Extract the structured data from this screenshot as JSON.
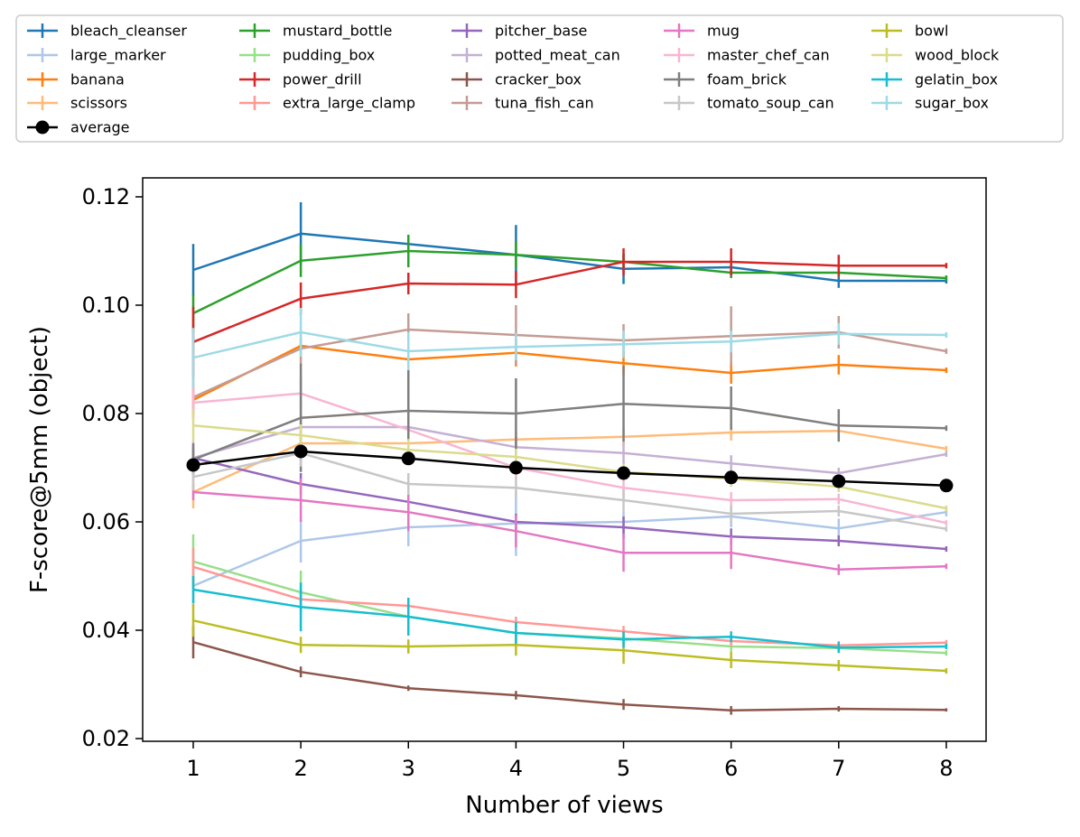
{
  "chart_data": {
    "type": "line",
    "title": "",
    "xlabel": "Number of views",
    "ylabel": "F-score@5mm (object)",
    "x": [
      1,
      2,
      3,
      4,
      5,
      6,
      7,
      8
    ],
    "xlim": [
      0.53,
      8.37
    ],
    "ylim": [
      0.0195,
      0.1235
    ],
    "xticks": [
      "1",
      "2",
      "3",
      "4",
      "5",
      "6",
      "7",
      "8"
    ],
    "yticks": [
      "0.02",
      "0.04",
      "0.06",
      "0.08",
      "0.10",
      "0.12"
    ],
    "legend_position": "top, above plot",
    "series": [
      {
        "name": "bleach_cleanser",
        "color": "#1f77b4",
        "values": [
          0.1065,
          0.1132,
          0.1113,
          0.1093,
          0.1067,
          0.107,
          0.1045,
          0.1045
        ],
        "err": [
          0.0048,
          0.0058,
          0.0015,
          0.0055,
          0.0028,
          0.0015,
          0.0013,
          0.0005
        ]
      },
      {
        "name": "large_marker",
        "color": "#aec7e8",
        "values": [
          0.0482,
          0.0565,
          0.059,
          0.0597,
          0.06,
          0.061,
          0.0588,
          0.0618
        ],
        "err": [
          0.004,
          0.004,
          0.0035,
          0.006,
          0.002,
          0.002,
          0.0018,
          0.0008
        ]
      },
      {
        "name": "banana",
        "color": "#ff7f0e",
        "values": [
          0.0825,
          0.0925,
          0.09,
          0.0912,
          0.0893,
          0.0875,
          0.089,
          0.088
        ],
        "err": [
          0.0025,
          0.0015,
          0.0013,
          0.0025,
          0.0022,
          0.002,
          0.0018,
          0.0005
        ]
      },
      {
        "name": "scissors",
        "color": "#ffbb78",
        "values": [
          0.0655,
          0.0745,
          0.0745,
          0.0752,
          0.0757,
          0.0765,
          0.0768,
          0.0735
        ],
        "err": [
          0.003,
          0.002,
          0.002,
          0.0015,
          0.0015,
          0.0015,
          0.0012,
          0.0005
        ]
      },
      {
        "name": "mustard_bottle",
        "color": "#2ca02c",
        "values": [
          0.0985,
          0.1082,
          0.11,
          0.1093,
          0.108,
          0.106,
          0.106,
          0.105
        ],
        "err": [
          0.0035,
          0.003,
          0.003,
          0.0025,
          0.0015,
          0.001,
          0.0008,
          0.0005
        ]
      },
      {
        "name": "pudding_box",
        "color": "#98df8a",
        "values": [
          0.0527,
          0.047,
          0.0425,
          0.0395,
          0.0385,
          0.037,
          0.0367,
          0.0358
        ],
        "err": [
          0.005,
          0.004,
          0.002,
          0.0015,
          0.0012,
          0.001,
          0.0008,
          0.0005
        ]
      },
      {
        "name": "power_drill",
        "color": "#d62728",
        "values": [
          0.0932,
          0.1012,
          0.104,
          0.1038,
          0.108,
          0.108,
          0.1073,
          0.1073
        ],
        "err": [
          0.0065,
          0.003,
          0.002,
          0.0025,
          0.0025,
          0.0025,
          0.002,
          0.0005
        ]
      },
      {
        "name": "extra_large_clamp",
        "color": "#ff9896",
        "values": [
          0.0517,
          0.0457,
          0.0445,
          0.0415,
          0.0398,
          0.038,
          0.0372,
          0.0377
        ],
        "err": [
          0.0035,
          0.002,
          0.0015,
          0.001,
          0.001,
          0.001,
          0.0008,
          0.0005
        ]
      },
      {
        "name": "pitcher_base",
        "color": "#9467bd",
        "values": [
          0.0718,
          0.067,
          0.0637,
          0.06,
          0.059,
          0.0573,
          0.0565,
          0.055
        ],
        "err": [
          0.002,
          0.002,
          0.002,
          0.0015,
          0.002,
          0.0015,
          0.001,
          0.0005
        ]
      },
      {
        "name": "potted_meat_can",
        "color": "#c5b0d5",
        "values": [
          0.0718,
          0.0775,
          0.0775,
          0.0738,
          0.0727,
          0.0708,
          0.069,
          0.0725
        ],
        "err": [
          0.003,
          0.0025,
          0.002,
          0.002,
          0.002,
          0.0015,
          0.001,
          0.0005
        ]
      },
      {
        "name": "cracker_box",
        "color": "#8c564b",
        "values": [
          0.0378,
          0.0323,
          0.0293,
          0.028,
          0.0263,
          0.0252,
          0.0255,
          0.0253
        ],
        "err": [
          0.003,
          0.001,
          0.0005,
          0.0008,
          0.001,
          0.0008,
          0.0005,
          0.0003
        ]
      },
      {
        "name": "tuna_fish_can",
        "color": "#c49c94",
        "values": [
          0.083,
          0.092,
          0.0955,
          0.0945,
          0.0935,
          0.0943,
          0.095,
          0.0915
        ],
        "err": [
          0.004,
          0.003,
          0.003,
          0.0055,
          0.003,
          0.0055,
          0.003,
          0.0005
        ]
      },
      {
        "name": "mug",
        "color": "#e377c2",
        "values": [
          0.0655,
          0.064,
          0.0618,
          0.0583,
          0.0543,
          0.0543,
          0.0512,
          0.0518
        ],
        "err": [
          0.0015,
          0.004,
          0.0035,
          0.003,
          0.0035,
          0.003,
          0.001,
          0.0005
        ]
      },
      {
        "name": "master_chef_can",
        "color": "#f7b6d2",
        "values": [
          0.082,
          0.0837,
          0.077,
          0.07,
          0.0663,
          0.064,
          0.0642,
          0.0598
        ],
        "err": [
          0.003,
          0.003,
          0.0025,
          0.002,
          0.002,
          0.0015,
          0.001,
          0.0005
        ]
      },
      {
        "name": "foam_brick",
        "color": "#7f7f7f",
        "values": [
          0.0715,
          0.0792,
          0.0805,
          0.08,
          0.0818,
          0.081,
          0.0778,
          0.0773
        ],
        "err": [
          0.003,
          0.01,
          0.0075,
          0.0065,
          0.007,
          0.004,
          0.003,
          0.0005
        ]
      },
      {
        "name": "tomato_soup_can",
        "color": "#c7c7c7",
        "values": [
          0.0683,
          0.0727,
          0.067,
          0.0663,
          0.064,
          0.0615,
          0.062,
          0.0587
        ],
        "err": [
          0.0025,
          0.0025,
          0.002,
          0.002,
          0.002,
          0.0015,
          0.001,
          0.0005
        ]
      },
      {
        "name": "bowl",
        "color": "#bcbd22",
        "values": [
          0.0418,
          0.0373,
          0.037,
          0.0373,
          0.0363,
          0.0345,
          0.0335,
          0.0325
        ],
        "err": [
          0.003,
          0.0015,
          0.0013,
          0.002,
          0.0025,
          0.0015,
          0.001,
          0.0005
        ]
      },
      {
        "name": "wood_block",
        "color": "#dbdb8d",
        "values": [
          0.0778,
          0.076,
          0.0733,
          0.072,
          0.0692,
          0.068,
          0.0665,
          0.0625
        ],
        "err": [
          0.003,
          0.002,
          0.002,
          0.0015,
          0.0015,
          0.0015,
          0.001,
          0.0005
        ]
      },
      {
        "name": "gelatin_box",
        "color": "#17becf",
        "values": [
          0.0475,
          0.0443,
          0.0425,
          0.0395,
          0.0383,
          0.0388,
          0.0368,
          0.037
        ],
        "err": [
          0.0025,
          0.0045,
          0.0035,
          0.002,
          0.0015,
          0.001,
          0.001,
          0.0005
        ]
      },
      {
        "name": "sugar_box",
        "color": "#9edae5",
        "values": [
          0.0903,
          0.095,
          0.0915,
          0.0923,
          0.0928,
          0.0933,
          0.0947,
          0.0945
        ],
        "err": [
          0.0055,
          0.0045,
          0.0035,
          0.0025,
          0.0025,
          0.002,
          0.002,
          0.0005
        ]
      },
      {
        "name": "average",
        "color": "#000000",
        "marker": "circle",
        "values": [
          0.0705,
          0.073,
          0.0717,
          0.07,
          0.069,
          0.0682,
          0.0675,
          0.0667
        ],
        "err": []
      }
    ]
  }
}
